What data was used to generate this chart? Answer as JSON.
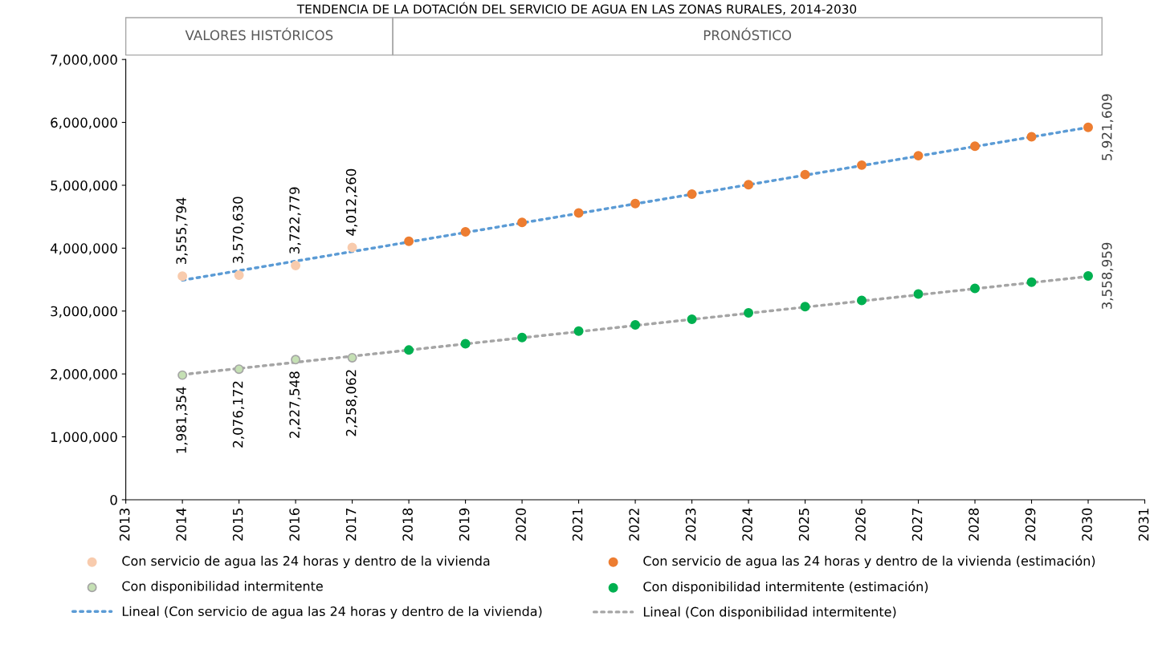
{
  "chart_data": {
    "type": "scatter",
    "title": "TENDENCIA DE LA DOTACIÓN DEL SERVICIO DE AGUA EN LAS ZONAS RURALES, 2014-2030",
    "xlim": [
      2013,
      2031
    ],
    "xticks": [
      2013,
      2014,
      2015,
      2016,
      2017,
      2018,
      2019,
      2020,
      2021,
      2022,
      2023,
      2024,
      2025,
      2026,
      2027,
      2028,
      2029,
      2030,
      2031
    ],
    "ylim": [
      0,
      7000000
    ],
    "yticks": [
      {
        "value": 0,
        "label": "0"
      },
      {
        "value": 1000000,
        "label": "1,000,000"
      },
      {
        "value": 2000000,
        "label": "2,000,000"
      },
      {
        "value": 3000000,
        "label": "3,000,000"
      },
      {
        "value": 4000000,
        "label": "4,000,000"
      },
      {
        "value": 5000000,
        "label": "5,000,000"
      },
      {
        "value": 6000000,
        "label": "6,000,000"
      },
      {
        "value": 7000000,
        "label": "7,000,000"
      }
    ],
    "grid": false,
    "legend": "bottom",
    "annotations": [
      "VALORES HISTÓRICOS",
      "PRONÓSTICO"
    ],
    "series": [
      {
        "name": "Con servicio de agua las 24 horas y dentro de la vivienda",
        "marker": "circle",
        "color": "#f8cbad",
        "x": [
          2014,
          2015,
          2016,
          2017
        ],
        "values": [
          3555794,
          3570630,
          3722779,
          4012260
        ],
        "value_labels": [
          "3,555,794",
          "3,570,630",
          "3,722,779",
          "4,012,260"
        ]
      },
      {
        "name": "Con servicio de agua las 24 horas y dentro de la vivienda (estimación)",
        "marker": "circle",
        "color": "#ed7d31",
        "x": [
          2018,
          2019,
          2020,
          2021,
          2022,
          2023,
          2024,
          2025,
          2026,
          2027,
          2028,
          2029,
          2030
        ],
        "values": [
          4110000,
          4260000,
          4410000,
          4560000,
          4710000,
          4860000,
          5010000,
          5170000,
          5320000,
          5470000,
          5620000,
          5770000,
          5921609
        ],
        "value_labels": [
          null,
          null,
          null,
          null,
          null,
          null,
          null,
          null,
          null,
          null,
          null,
          null,
          "5,921,609"
        ]
      },
      {
        "name": "Con disponibilidad intermitente",
        "marker": "circle",
        "color": "#c5e0b4",
        "x": [
          2014,
          2015,
          2016,
          2017
        ],
        "values": [
          1981354,
          2076172,
          2227548,
          2258062
        ],
        "value_labels": [
          "1,981,354",
          "2,076,172",
          "2,227,548",
          "2,258,062"
        ]
      },
      {
        "name": "Con disponibilidad intermitente (estimación)",
        "marker": "circle",
        "color": "#00b050",
        "x": [
          2018,
          2019,
          2020,
          2021,
          2022,
          2023,
          2024,
          2025,
          2026,
          2027,
          2028,
          2029,
          2030
        ],
        "values": [
          2380000,
          2480000,
          2580000,
          2680000,
          2780000,
          2870000,
          2970000,
          3070000,
          3170000,
          3270000,
          3360000,
          3460000,
          3558959
        ],
        "value_labels": [
          null,
          null,
          null,
          null,
          null,
          null,
          null,
          null,
          null,
          null,
          null,
          null,
          "3,558,959"
        ]
      },
      {
        "name": "Lineal (Con servicio de agua las 24 horas y dentro de la vivienda)",
        "type": "line",
        "line_style": "dotted",
        "color": "#5b9bd5",
        "x": [
          2014,
          2030
        ],
        "values": [
          3490000,
          5920000
        ]
      },
      {
        "name": "Lineal (Con disponibilidad intermitente)",
        "type": "line",
        "line_style": "dotted",
        "color": "#a5a5a5",
        "x": [
          2014,
          2030
        ],
        "values": [
          1990000,
          3550000
        ]
      }
    ]
  }
}
